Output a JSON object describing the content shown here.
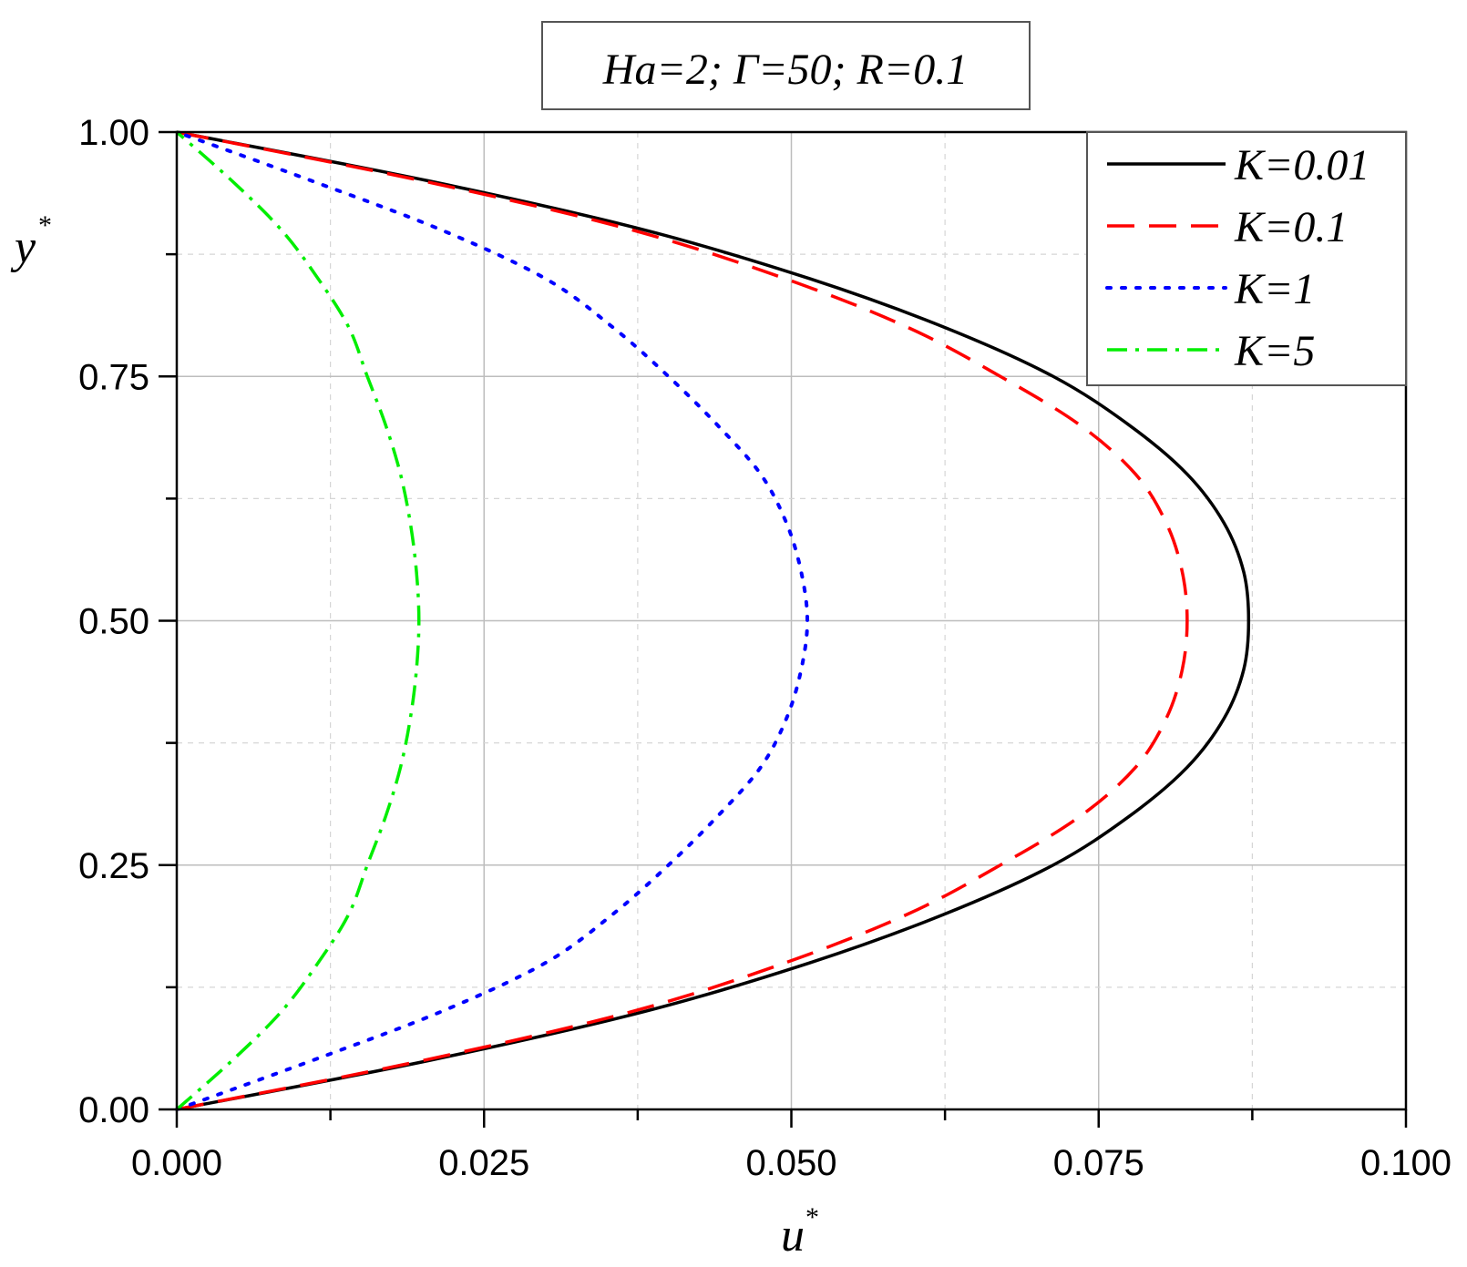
{
  "chart_data": {
    "type": "line",
    "title": "Ha=2; Γ=50; R=0.1",
    "xlabel": "u",
    "xlabel_sup": "*",
    "ylabel": "y",
    "ylabel_sup": "*",
    "xlim": [
      0,
      0.1
    ],
    "ylim": [
      0,
      1
    ],
    "x_ticks": [
      "0.000",
      "0.025",
      "0.050",
      "0.075",
      "0.100"
    ],
    "y_ticks": [
      "0.00",
      "0.25",
      "0.50",
      "0.75",
      "1.00"
    ],
    "grid": true,
    "legend_position": "top-right",
    "y": [
      0,
      0.05,
      0.1,
      0.15,
      0.2,
      0.25,
      0.3,
      0.35,
      0.4,
      0.45,
      0.5,
      0.55,
      0.6,
      0.65,
      0.7,
      0.75,
      0.8,
      0.85,
      0.9,
      0.95,
      1.0
    ],
    "series": [
      {
        "name": "K=0.01",
        "color": "#000000",
        "style": "solid",
        "x": [
          0,
          0.0205,
          0.038,
          0.0515,
          0.0625,
          0.0713,
          0.0775,
          0.0822,
          0.0852,
          0.0868,
          0.0872,
          0.0868,
          0.0852,
          0.0822,
          0.0775,
          0.0713,
          0.0625,
          0.0515,
          0.038,
          0.0205,
          0
        ]
      },
      {
        "name": "K=0.1",
        "color": "#ff0000",
        "style": "dashed",
        "x": [
          0,
          0.02,
          0.037,
          0.0495,
          0.0595,
          0.067,
          0.0735,
          0.078,
          0.0805,
          0.0818,
          0.0822,
          0.0818,
          0.0805,
          0.078,
          0.0735,
          0.067,
          0.0595,
          0.0495,
          0.037,
          0.02,
          0
        ]
      },
      {
        "name": "K=1",
        "color": "#0000ff",
        "style": "dotted",
        "x": [
          0,
          0.011,
          0.0215,
          0.03,
          0.0355,
          0.04,
          0.044,
          0.0475,
          0.0496,
          0.0508,
          0.0513,
          0.0508,
          0.0496,
          0.0475,
          0.044,
          0.04,
          0.0355,
          0.03,
          0.0215,
          0.011,
          0
        ]
      },
      {
        "name": "K=5",
        "color": "#00ee00",
        "style": "dashdot",
        "x": [
          0,
          0.0045,
          0.0085,
          0.0115,
          0.014,
          0.0155,
          0.017,
          0.0182,
          0.019,
          0.0195,
          0.0197,
          0.0195,
          0.019,
          0.0182,
          0.017,
          0.0155,
          0.014,
          0.0115,
          0.0085,
          0.0045,
          0
        ]
      }
    ]
  }
}
